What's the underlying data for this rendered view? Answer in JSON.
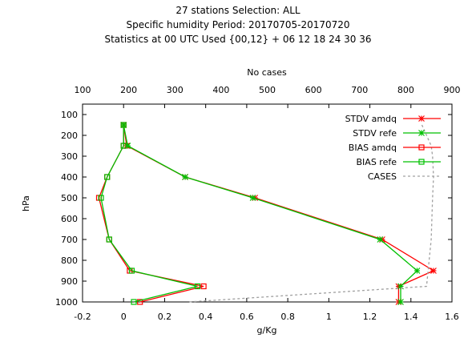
{
  "chart_data": {
    "type": "line",
    "title": [
      "27 stations Selection: ALL",
      "Specific humidity  Period: 20170705-20170720",
      "Statistics at 00 UTC  Used {00,12} + 06 12 18 24 30 36"
    ],
    "xlabel": "g/Kg",
    "ylabel": "hPa",
    "x2label": "No cases",
    "xlim": [
      -0.2,
      1.6
    ],
    "ylim": [
      1000,
      50
    ],
    "x2lim": [
      100,
      900
    ],
    "xticks": [
      "-0.2",
      "0",
      "0.2",
      "0.4",
      "0.6",
      "0.8",
      "1",
      "1.2",
      "1.4",
      "1.6"
    ],
    "yticks": [
      "100",
      "200",
      "300",
      "400",
      "500",
      "600",
      "700",
      "800",
      "900",
      "1000"
    ],
    "x2ticks": [
      "100",
      "200",
      "300",
      "400",
      "500",
      "600",
      "700",
      "800",
      "900"
    ],
    "legend_position": "top-right",
    "series": [
      {
        "name": "STDV amdq",
        "color": "#ff0000",
        "marker": "star",
        "x": [
          0.0,
          0.015,
          0.3,
          0.64,
          1.26,
          1.51,
          1.34,
          1.34
        ],
        "y": [
          150,
          250,
          400,
          500,
          700,
          850,
          925,
          1000
        ]
      },
      {
        "name": "STDV refe",
        "color": "#00c000",
        "marker": "star",
        "x": [
          0.0,
          0.02,
          0.3,
          0.63,
          1.25,
          1.43,
          1.35,
          1.35
        ],
        "y": [
          150,
          250,
          400,
          500,
          700,
          850,
          925,
          1000
        ]
      },
      {
        "name": "BIAS amdq",
        "color": "#ff0000",
        "marker": "square",
        "x": [
          0.0,
          0.0,
          -0.08,
          -0.12,
          -0.07,
          0.03,
          0.39,
          0.08
        ],
        "y": [
          150,
          250,
          400,
          500,
          700,
          850,
          925,
          1000
        ]
      },
      {
        "name": "BIAS refe",
        "color": "#00c000",
        "marker": "square",
        "x": [
          0.0,
          0.0,
          -0.08,
          -0.11,
          -0.07,
          0.04,
          0.36,
          0.05
        ],
        "y": [
          150,
          250,
          400,
          500,
          700,
          850,
          925,
          1000
        ]
      },
      {
        "name": "CASES",
        "color": "#a0a0a0",
        "dashed": true,
        "axis": "x2",
        "x": [
          835,
          855,
          858,
          860,
          858,
          855,
          845,
          330
        ],
        "y": [
          150,
          250,
          300,
          400,
          500,
          700,
          925,
          1000
        ]
      }
    ]
  }
}
